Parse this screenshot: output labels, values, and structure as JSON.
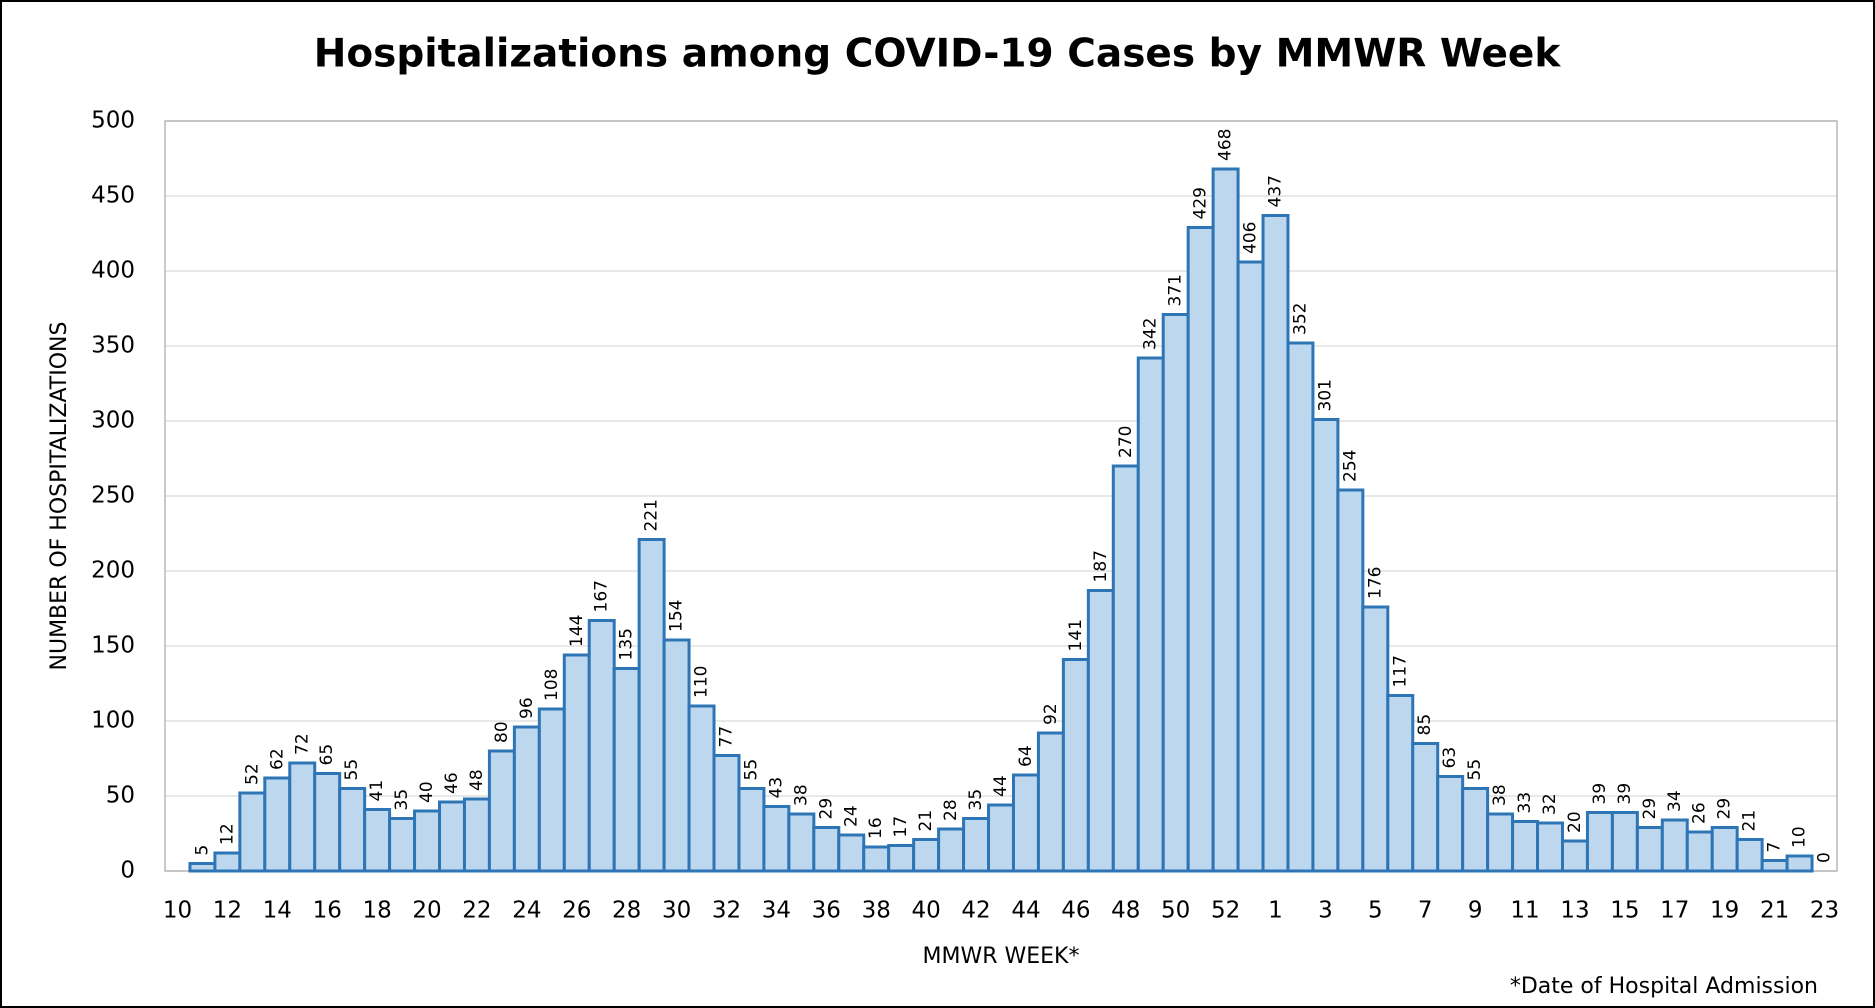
{
  "chart_data": {
    "type": "bar",
    "title": "Hospitalizations among COVID-19 Cases by MMWR Week",
    "x_label": "MMWR WEEK*",
    "y_label": "NUMBER OF HOSPITALIZATIONS",
    "footnote": "*Date of Hospital Admission",
    "categories": [
      "10",
      null,
      "12",
      null,
      "14",
      null,
      "16",
      null,
      "18",
      null,
      "20",
      null,
      "22",
      null,
      "24",
      null,
      "26",
      null,
      "28",
      null,
      "30",
      null,
      "32",
      null,
      "34",
      null,
      "36",
      null,
      "38",
      null,
      "40",
      null,
      "42",
      null,
      "44",
      null,
      "46",
      null,
      "48",
      null,
      "50",
      null,
      "52",
      null,
      "1",
      null,
      "3",
      null,
      "5",
      null,
      "7",
      null,
      "9",
      null,
      "11",
      null,
      "13",
      null,
      "15",
      null,
      "17",
      null,
      "19",
      null,
      "21",
      null,
      "23"
    ],
    "values": [
      null,
      5,
      12,
      52,
      62,
      72,
      65,
      55,
      41,
      35,
      40,
      46,
      48,
      80,
      96,
      108,
      144,
      167,
      135,
      221,
      154,
      110,
      77,
      55,
      43,
      38,
      29,
      24,
      16,
      17,
      21,
      28,
      35,
      44,
      64,
      92,
      141,
      187,
      270,
      342,
      371,
      429,
      468,
      406,
      437,
      352,
      301,
      254,
      176,
      117,
      85,
      63,
      55,
      38,
      33,
      32,
      20,
      39,
      39,
      29,
      34,
      26,
      29,
      21,
      7,
      10,
      0
    ],
    "color": "#bdd7ee",
    "edge_color": "#2e75b6",
    "ylim": [
      0,
      500
    ],
    "yticks": [
      0,
      50,
      100,
      150,
      200,
      250,
      300,
      350,
      400,
      450,
      500
    ],
    "grid": true,
    "data_labels": true
  }
}
